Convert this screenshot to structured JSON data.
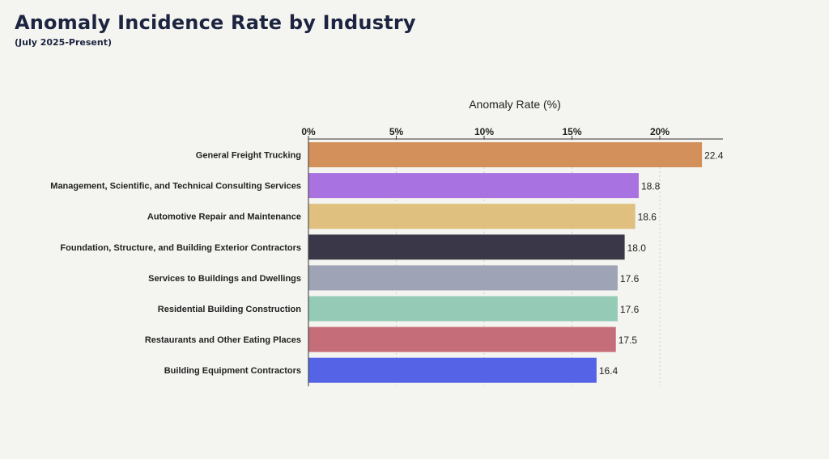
{
  "page": {
    "title": "Anomaly Incidence Rate by Industry",
    "subtitle": "(July 2025-Present)"
  },
  "chart_data": {
    "type": "bar",
    "orientation": "horizontal",
    "title": "Anomaly Incidence Rate by Industry",
    "subtitle": "(July 2025-Present)",
    "xlabel": "Anomaly Rate (%)",
    "ylabel": "",
    "xlim": [
      0,
      23.5
    ],
    "x_ticks": [
      0,
      5,
      10,
      15,
      20
    ],
    "x_tick_labels": [
      "0%",
      "5%",
      "10%",
      "15%",
      "20%"
    ],
    "x_axis_position": "top",
    "grid": true,
    "legend": false,
    "categories": [
      "General Freight Trucking",
      "Management, Scientific, and Technical Consulting Services",
      "Automotive Repair and Maintenance",
      "Foundation, Structure, and Building Exterior Contractors",
      "Services to Buildings and Dwellings",
      "Residential Building Construction",
      "Restaurants and Other Eating Places",
      "Building Equipment Contractors"
    ],
    "values": [
      22.4,
      18.8,
      18.6,
      18.0,
      17.6,
      17.6,
      17.5,
      16.4
    ],
    "value_labels": [
      "22.4",
      "18.8",
      "18.6",
      "18.0",
      "17.6",
      "17.6",
      "17.5",
      "16.4"
    ],
    "colors": [
      "#d4905a",
      "#a872e0",
      "#dfc07f",
      "#3a3848",
      "#9ea3b6",
      "#95cbb6",
      "#c56e7a",
      "#5563e6"
    ]
  }
}
